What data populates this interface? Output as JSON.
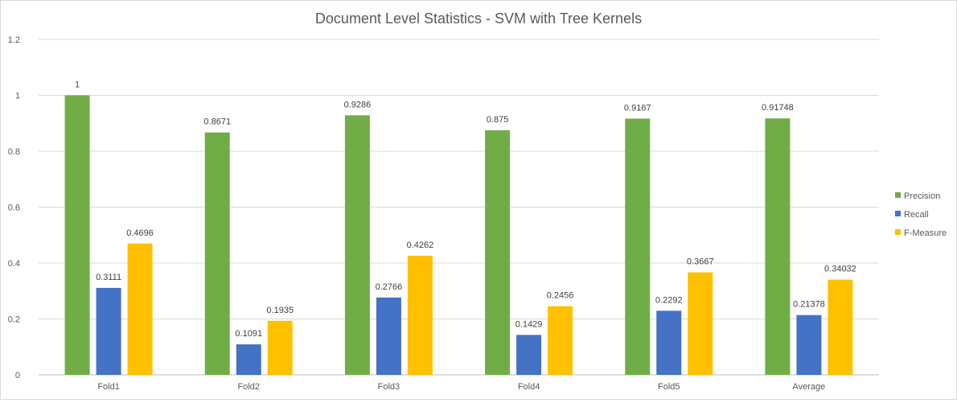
{
  "chart_data": {
    "type": "bar",
    "title": "Document Level Statistics - SVM with Tree Kernels",
    "xlabel": "",
    "ylabel": "",
    "categories": [
      "Fold1",
      "Fold2",
      "Fold3",
      "Fold4",
      "Fold5",
      "Average"
    ],
    "series": [
      {
        "name": "Precision",
        "color": "#70ad47",
        "values": [
          1,
          0.8671,
          0.9286,
          0.875,
          0.9167,
          0.91748
        ],
        "labels": [
          "1",
          "0.8671",
          "0.9286",
          "0.875",
          "0.9167",
          "0.91748"
        ]
      },
      {
        "name": "Recall",
        "color": "#4472c4",
        "values": [
          0.3111,
          0.1091,
          0.2766,
          0.1429,
          0.2292,
          0.21378
        ],
        "labels": [
          "0.3111",
          "0.1091",
          "0.2766",
          "0.1429",
          "0.2292",
          "0.21378"
        ]
      },
      {
        "name": "F-Measure",
        "color": "#ffc000",
        "values": [
          0.4696,
          0.1935,
          0.4262,
          0.2456,
          0.3667,
          0.34032
        ],
        "labels": [
          "0.4696",
          "0.1935",
          "0.4262",
          "0.2456",
          "0.3667",
          "0.34032"
        ]
      }
    ],
    "ylim": [
      0,
      1.2
    ],
    "yticks": [
      "0",
      "0.2",
      "0.4",
      "0.6",
      "0.8",
      "1",
      "1.2"
    ],
    "grid": true,
    "legend": "right"
  }
}
